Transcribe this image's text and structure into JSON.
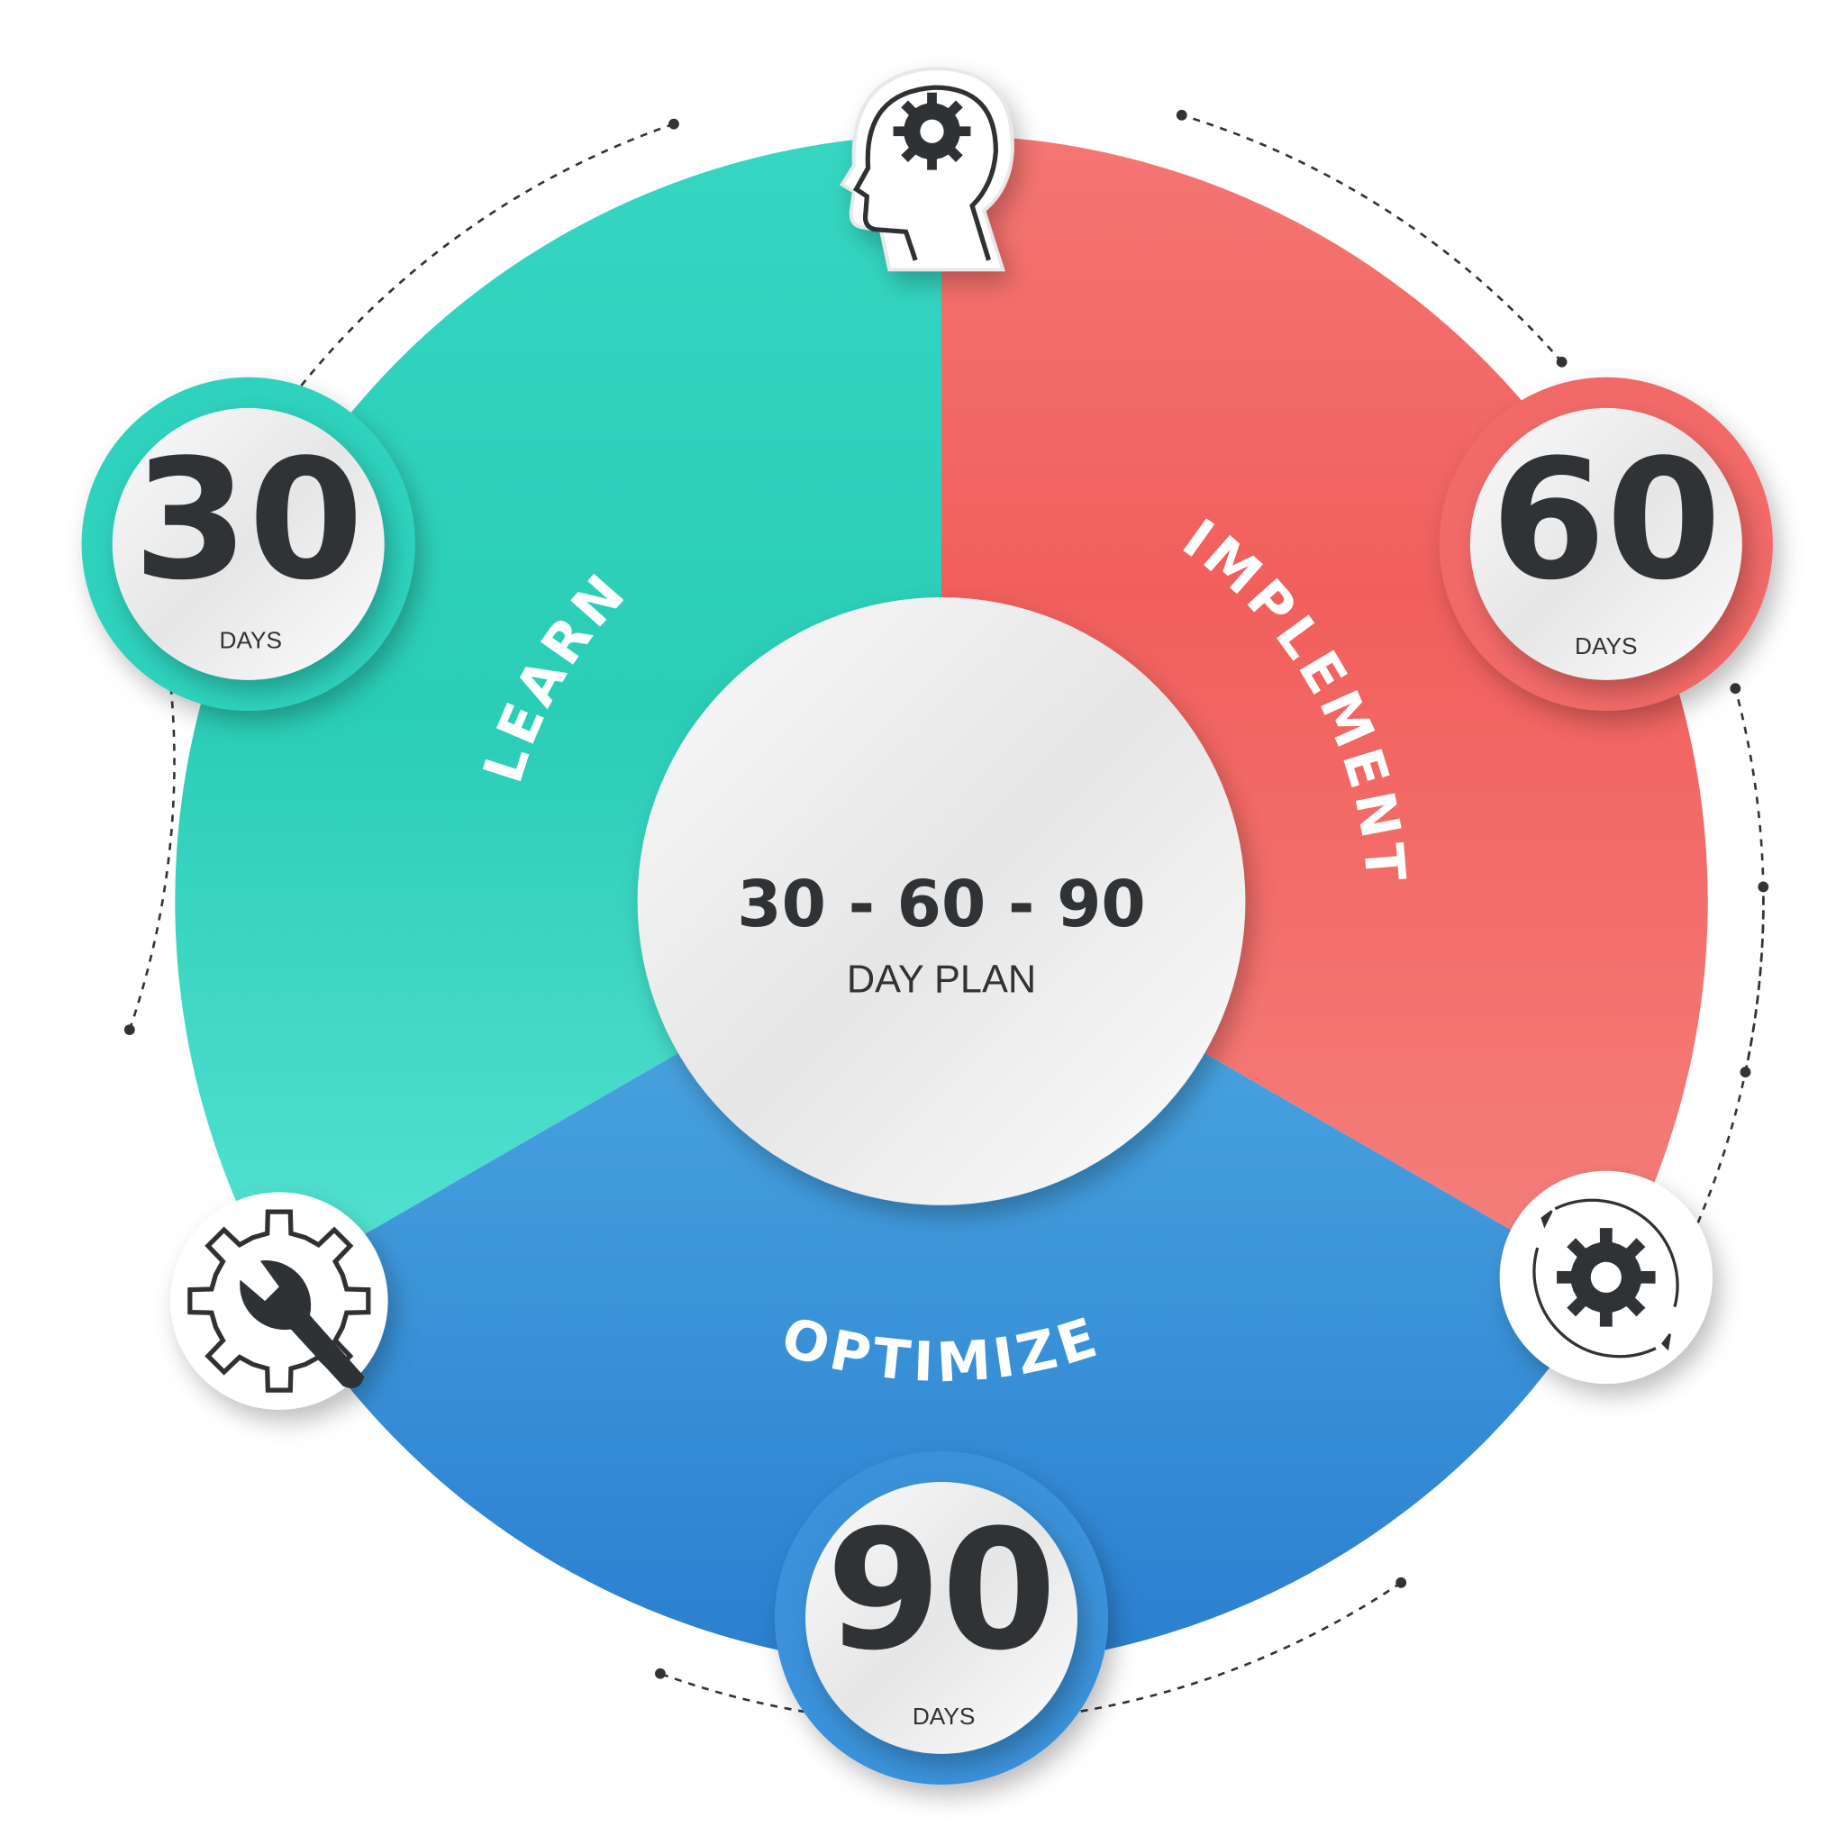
{
  "center": {
    "title": "30 - 60 - 90",
    "subtitle": "DAY PLAN"
  },
  "phases": [
    {
      "label": "LEARN",
      "days": "30",
      "unit": "DAYS",
      "color": "#2ecfb8"
    },
    {
      "label": "IMPLEMENT",
      "days": "60",
      "unit": "DAYS",
      "color": "#f26461"
    },
    {
      "label": "OPTIMIZE",
      "days": "90",
      "unit": "DAYS",
      "color": "#3a92da"
    }
  ],
  "icons": [
    "head-gear-icon",
    "wrench-gear-icon",
    "cycle-gear-icon"
  ],
  "colors": {
    "dark": "#2f3336",
    "teal": "#2ecfb8",
    "red": "#f26461",
    "blue": "#3a92da"
  }
}
